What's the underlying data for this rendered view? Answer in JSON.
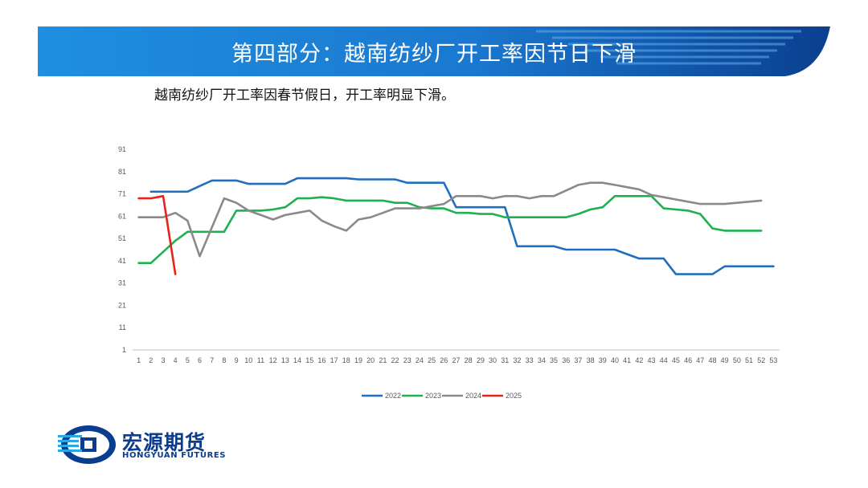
{
  "header": {
    "title": "第四部分：越南纺纱厂开工率因节日下滑",
    "colors": {
      "banner_light": "#1f8fe0",
      "banner_dark": "#0b3f8f"
    }
  },
  "subtitle": "越南纺纱厂开工率因春节假日，开工率明显下滑。",
  "logo": {
    "name_cn": "宏源期货",
    "name_en": "HONGYUAN FUTURES",
    "icon": "hongyuan-logo-icon",
    "color": "#0a3d8f"
  },
  "chart_data": {
    "type": "line",
    "title": "",
    "xlabel": "",
    "ylabel": "",
    "x": [
      1,
      2,
      3,
      4,
      5,
      6,
      7,
      8,
      9,
      10,
      11,
      12,
      13,
      14,
      15,
      16,
      17,
      18,
      19,
      20,
      21,
      22,
      23,
      24,
      25,
      26,
      27,
      28,
      29,
      30,
      31,
      32,
      33,
      34,
      35,
      36,
      37,
      38,
      39,
      40,
      41,
      42,
      43,
      44,
      45,
      46,
      47,
      48,
      49,
      50,
      51,
      52,
      53
    ],
    "ylim": [
      1,
      91
    ],
    "yticks": [
      1,
      11,
      21,
      31,
      41,
      51,
      61,
      71,
      81,
      91
    ],
    "grid": false,
    "legend_position": "bottom",
    "series": [
      {
        "name": "2022",
        "color": "#1f6fbf",
        "values": [
          null,
          72,
          72,
          72,
          72,
          74.5,
          77,
          77,
          77,
          75.5,
          75.5,
          75.5,
          75.5,
          78,
          78,
          78,
          78,
          78,
          77.5,
          77.5,
          77.5,
          77.5,
          76,
          76,
          76,
          76,
          65,
          65,
          65,
          65,
          65,
          47.5,
          47.5,
          47.5,
          47.5,
          46,
          46,
          46,
          46,
          46,
          44,
          42,
          42,
          42,
          35,
          35,
          35,
          35,
          38.5,
          38.5,
          38.5,
          38.5,
          38.5
        ]
      },
      {
        "name": "2023",
        "color": "#1eb14f",
        "values": [
          40,
          40,
          45,
          50,
          54,
          54,
          54,
          54,
          63.5,
          63.5,
          63.5,
          64,
          65,
          69,
          69,
          69.5,
          69,
          68,
          68,
          68,
          68,
          67,
          67,
          65,
          64.5,
          64.5,
          62.5,
          62.5,
          62,
          62,
          60.5,
          60.5,
          60.5,
          60.5,
          60.5,
          60.5,
          62,
          64,
          65,
          70,
          70,
          70,
          70,
          64.5,
          64,
          63.5,
          62,
          55.5,
          54.5,
          54.5,
          54.5,
          54.5,
          null
        ]
      },
      {
        "name": "2024",
        "color": "#8a8a8a",
        "values": [
          60.5,
          60.5,
          60.5,
          62.5,
          59,
          43,
          56,
          69,
          67,
          63.5,
          61.5,
          59.5,
          61.5,
          62.5,
          63.5,
          59,
          56.5,
          54.5,
          59.5,
          60.5,
          62.5,
          64.5,
          64.5,
          64.5,
          65.5,
          66.5,
          70,
          70,
          70,
          69,
          70,
          70,
          69,
          70,
          70,
          72.5,
          75,
          76,
          76,
          75,
          74,
          73,
          70.5,
          69.5,
          68.5,
          67.5,
          66.5,
          66.5,
          66.5,
          67,
          67.5,
          68,
          null
        ]
      },
      {
        "name": "2025",
        "color": "#e8231a",
        "values": [
          69,
          69,
          70,
          35,
          null,
          null,
          null,
          null,
          null,
          null,
          null,
          null,
          null,
          null,
          null,
          null,
          null,
          null,
          null,
          null,
          null,
          null,
          null,
          null,
          null,
          null,
          null,
          null,
          null,
          null,
          null,
          null,
          null,
          null,
          null,
          null,
          null,
          null,
          null,
          null,
          null,
          null,
          null,
          null,
          null,
          null,
          null,
          null,
          null,
          null,
          null,
          null,
          null
        ]
      }
    ]
  }
}
